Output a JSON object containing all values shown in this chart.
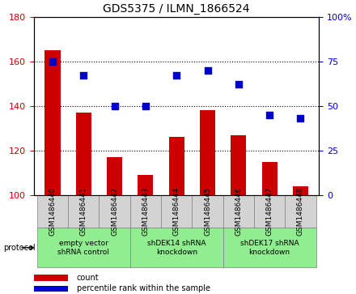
{
  "title": "GDS5375 / ILMN_1866524",
  "samples": [
    "GSM1486440",
    "GSM1486441",
    "GSM1486442",
    "GSM1486443",
    "GSM1486444",
    "GSM1486445",
    "GSM1486446",
    "GSM1486447",
    "GSM1486448"
  ],
  "counts": [
    165,
    137,
    117,
    109,
    126,
    138,
    127,
    115,
    104
  ],
  "percentiles": [
    75,
    67,
    50,
    50,
    67,
    70,
    62,
    45,
    43
  ],
  "bar_color": "#cc0000",
  "dot_color": "#0000cc",
  "ylim_left": [
    100,
    180
  ],
  "ylim_right": [
    0,
    100
  ],
  "yticks_left": [
    100,
    120,
    140,
    160,
    180
  ],
  "yticks_right": [
    0,
    25,
    50,
    75,
    100
  ],
  "ytick_labels_right": [
    "0",
    "25",
    "50",
    "75",
    "100%"
  ],
  "groups": [
    {
      "label": "empty vector\nshRNA control",
      "start": 0,
      "end": 3,
      "color": "#90EE90"
    },
    {
      "label": "shDEK14 shRNA\nknockdown",
      "start": 3,
      "end": 6,
      "color": "#90EE90"
    },
    {
      "label": "shDEK17 shRNA\nknockdown",
      "start": 6,
      "end": 9,
      "color": "#90EE90"
    }
  ],
  "protocol_label": "protocol",
  "legend_count_label": "count",
  "legend_percentile_label": "percentile rank within the sample",
  "bg_color": "#f0f0f0",
  "plot_bg_color": "#ffffff"
}
